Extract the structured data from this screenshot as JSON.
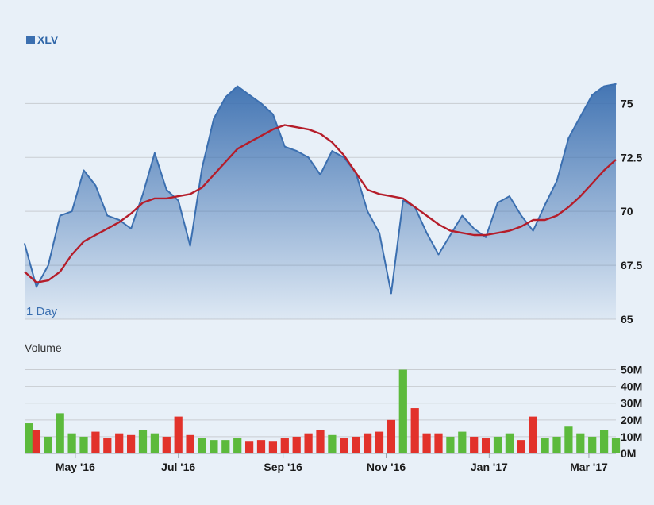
{
  "chart_data": {
    "type": "area",
    "legend": {
      "label": "XLV",
      "color": "#3b6fb0",
      "placement": "top-left"
    },
    "period_label": "1 Day",
    "price": {
      "ylim": [
        65,
        77
      ],
      "yticks": [
        65,
        67.5,
        70,
        72.5,
        75
      ],
      "ytick_labels": [
        "65",
        "67.5",
        "70",
        "72.5",
        "75"
      ],
      "x": [
        "2016-04-01",
        "2016-04-08",
        "2016-04-15",
        "2016-04-22",
        "2016-04-29",
        "2016-05-06",
        "2016-05-13",
        "2016-05-20",
        "2016-05-27",
        "2016-06-03",
        "2016-06-10",
        "2016-06-17",
        "2016-06-24",
        "2016-07-01",
        "2016-07-08",
        "2016-07-15",
        "2016-07-22",
        "2016-07-29",
        "2016-08-05",
        "2016-08-12",
        "2016-08-19",
        "2016-08-26",
        "2016-09-02",
        "2016-09-09",
        "2016-09-16",
        "2016-09-23",
        "2016-09-30",
        "2016-10-07",
        "2016-10-14",
        "2016-10-21",
        "2016-10-28",
        "2016-11-04",
        "2016-11-11",
        "2016-11-18",
        "2016-11-25",
        "2016-12-02",
        "2016-12-09",
        "2016-12-16",
        "2016-12-23",
        "2016-12-30",
        "2017-01-06",
        "2017-01-13",
        "2017-01-20",
        "2017-01-27",
        "2017-02-03",
        "2017-02-10",
        "2017-02-17",
        "2017-02-24",
        "2017-03-03",
        "2017-03-10",
        "2017-03-17"
      ],
      "close": [
        68.5,
        66.5,
        67.5,
        69.8,
        70.0,
        71.9,
        71.2,
        69.8,
        69.6,
        69.2,
        70.8,
        72.7,
        71.0,
        70.5,
        68.4,
        72.0,
        74.3,
        75.3,
        75.8,
        75.4,
        75.0,
        74.5,
        73.0,
        72.8,
        72.5,
        71.7,
        72.8,
        72.5,
        71.8,
        70.0,
        69.0,
        66.2,
        70.5,
        70.2,
        69.0,
        68.0,
        68.9,
        69.8,
        69.2,
        68.8,
        70.4,
        70.7,
        69.8,
        69.1,
        70.3,
        71.4,
        73.4,
        74.4,
        75.4,
        75.8,
        75.9
      ],
      "moving_average": [
        67.2,
        66.7,
        66.8,
        67.2,
        68.0,
        68.6,
        68.9,
        69.2,
        69.5,
        69.9,
        70.4,
        70.6,
        70.6,
        70.7,
        70.8,
        71.1,
        71.7,
        72.3,
        72.9,
        73.2,
        73.5,
        73.8,
        74.0,
        73.9,
        73.8,
        73.6,
        73.2,
        72.6,
        71.8,
        71.0,
        70.8,
        70.7,
        70.6,
        70.2,
        69.8,
        69.4,
        69.1,
        69.0,
        68.9,
        68.9,
        69.0,
        69.1,
        69.3,
        69.6,
        69.6,
        69.8,
        70.2,
        70.7,
        71.3,
        71.9,
        72.4
      ],
      "area_color": "#3b6fb0",
      "ma_color": "#b51d2a"
    },
    "volume": {
      "title": "Volume",
      "ylim": [
        0,
        55
      ],
      "yticks": [
        0,
        10,
        20,
        30,
        40,
        50
      ],
      "ytick_labels": [
        "0M",
        "10M",
        "20M",
        "30M",
        "40M",
        "50M"
      ],
      "unit": "M",
      "x": [
        "2016-04-01",
        "2016-04-08",
        "2016-04-15",
        "2016-04-22",
        "2016-04-29",
        "2016-05-06",
        "2016-05-13",
        "2016-05-20",
        "2016-05-27",
        "2016-06-03",
        "2016-06-10",
        "2016-06-17",
        "2016-06-24",
        "2016-07-01",
        "2016-07-08",
        "2016-07-15",
        "2016-07-22",
        "2016-07-29",
        "2016-08-05",
        "2016-08-12",
        "2016-08-19",
        "2016-08-26",
        "2016-09-02",
        "2016-09-09",
        "2016-09-16",
        "2016-09-23",
        "2016-09-30",
        "2016-10-07",
        "2016-10-14",
        "2016-10-21",
        "2016-10-28",
        "2016-11-04",
        "2016-11-11",
        "2016-11-18",
        "2016-11-25",
        "2016-12-02",
        "2016-12-09",
        "2016-12-16",
        "2016-12-23",
        "2016-12-30",
        "2017-01-06",
        "2017-01-13",
        "2017-01-20",
        "2017-01-27",
        "2017-02-03",
        "2017-02-10",
        "2017-02-17",
        "2017-02-24",
        "2017-03-03",
        "2017-03-10",
        "2017-03-17"
      ],
      "values": [
        18,
        14,
        10,
        24,
        12,
        10,
        13,
        9,
        12,
        11,
        14,
        12,
        10,
        22,
        11,
        9,
        8,
        8,
        9,
        7,
        8,
        7,
        9,
        10,
        12,
        14,
        11,
        9,
        10,
        12,
        13,
        20,
        50,
        27,
        12,
        12,
        10,
        13,
        10,
        9,
        10,
        12,
        8,
        22,
        9,
        10,
        16,
        12,
        10,
        14,
        9
      ],
      "up_color": "#5cba3c",
      "down_color": "#e2322b"
    },
    "x_axis": {
      "ticks": [
        "2016-05-01",
        "2016-07-01",
        "2016-09-01",
        "2016-11-01",
        "2017-01-01",
        "2017-03-01"
      ],
      "labels": [
        "May '16",
        "Jul '16",
        "Sep '16",
        "Nov '16",
        "Jan '17",
        "Mar '17"
      ]
    },
    "grid": true
  }
}
